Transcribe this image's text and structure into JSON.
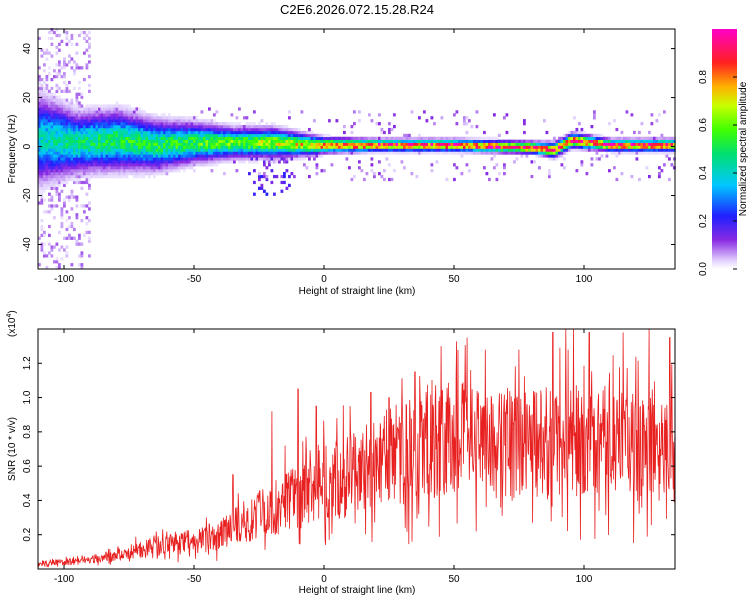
{
  "title": "C2E6.2026.072.15.28.R24",
  "colors": {
    "snr_line": "#e82020",
    "axis": "#000000",
    "background": "#ffffff"
  },
  "chart_data": [
    {
      "type": "heatmap",
      "xlabel": "Height of straight line (km)",
      "ylabel": "Frequency (Hz)",
      "xlim": [
        -110,
        135
      ],
      "ylim": [
        -50,
        48
      ],
      "x_ticks": [
        "-100",
        "-50",
        "0",
        "50",
        "100"
      ],
      "y_ticks": [
        "-40",
        "-20",
        "0",
        "20",
        "40"
      ],
      "colorbar": {
        "label": "Normalized spectral amplitude",
        "range": [
          0,
          1
        ],
        "ticks": [
          "0.0",
          "0.2",
          "0.4",
          "0.6",
          "0.8"
        ],
        "colormap": "rainbow (white-violet-blue-cyan-green-yellow-red-magenta)"
      },
      "ridge": [
        {
          "x": -105,
          "center": 2,
          "spread": 8,
          "amp": 0.45
        },
        {
          "x": -95,
          "center": 1,
          "spread": 6,
          "amp": 0.5
        },
        {
          "x": -80,
          "center": 2,
          "spread": 6,
          "amp": 0.55
        },
        {
          "x": -65,
          "center": 0,
          "spread": 5,
          "amp": 0.55
        },
        {
          "x": -50,
          "center": 1,
          "spread": 4,
          "amp": 0.6
        },
        {
          "x": -35,
          "center": 1,
          "spread": 3,
          "amp": 0.65
        },
        {
          "x": -20,
          "center": 1,
          "spread": 3,
          "amp": 0.7
        },
        {
          "x": -5,
          "center": 0,
          "spread": 2,
          "amp": 0.8
        },
        {
          "x": 0,
          "center": 0,
          "spread": 1.5,
          "amp": 0.95
        },
        {
          "x": 20,
          "center": 0,
          "spread": 1.2,
          "amp": 1.0
        },
        {
          "x": 50,
          "center": 0,
          "spread": 1.2,
          "amp": 1.0
        },
        {
          "x": 80,
          "center": -1,
          "spread": 1.2,
          "amp": 1.0
        },
        {
          "x": 88,
          "center": -2,
          "spread": 1.5,
          "amp": 0.95
        },
        {
          "x": 95,
          "center": 2,
          "spread": 1.5,
          "amp": 0.95
        },
        {
          "x": 110,
          "center": 0,
          "spread": 1.2,
          "amp": 1.0
        },
        {
          "x": 135,
          "center": 0,
          "spread": 1.2,
          "amp": 1.0
        }
      ]
    },
    {
      "type": "line",
      "xlabel": "Height of straight line (km)",
      "ylabel": "SNR (10 * v/v)",
      "y_exponent_label": "(x10",
      "y_exponent": "4",
      "xlim": [
        -110,
        135
      ],
      "ylim": [
        0,
        1.4
      ],
      "x_ticks": [
        "-100",
        "-50",
        "0",
        "50",
        "100"
      ],
      "y_ticks": [
        "0.2",
        "0.4",
        "0.6",
        "0.8",
        "1.0",
        "1.2"
      ],
      "series": [
        {
          "baseline": [
            [
              -110,
              0.03
            ],
            [
              -100,
              0.04
            ],
            [
              -90,
              0.05
            ],
            [
              -80,
              0.08
            ],
            [
              -70,
              0.12
            ],
            [
              -60,
              0.14
            ],
            [
              -50,
              0.16
            ],
            [
              -40,
              0.2
            ],
            [
              -30,
              0.28
            ],
            [
              -20,
              0.35
            ],
            [
              -10,
              0.42
            ],
            [
              0,
              0.5
            ],
            [
              10,
              0.55
            ],
            [
              20,
              0.62
            ],
            [
              30,
              0.68
            ],
            [
              40,
              0.74
            ],
            [
              50,
              0.78
            ],
            [
              60,
              0.74
            ],
            [
              70,
              0.72
            ],
            [
              80,
              0.72
            ],
            [
              90,
              0.74
            ],
            [
              100,
              0.76
            ],
            [
              110,
              0.74
            ],
            [
              120,
              0.72
            ],
            [
              135,
              0.7
            ]
          ],
          "peaks": [
            [
              -35,
              0.55
            ],
            [
              -20,
              0.92
            ],
            [
              -15,
              0.72
            ],
            [
              -10,
              1.05
            ],
            [
              -3,
              0.95
            ],
            [
              5,
              0.88
            ],
            [
              10,
              0.95
            ],
            [
              18,
              1.03
            ],
            [
              25,
              1.0
            ],
            [
              35,
              1.15
            ],
            [
              45,
              1.3
            ],
            [
              55,
              1.35
            ],
            [
              62,
              1.28
            ],
            [
              75,
              1.28
            ],
            [
              88,
              1.38
            ],
            [
              93,
              1.45
            ],
            [
              96,
              1.42
            ],
            [
              102,
              1.38
            ],
            [
              115,
              1.38
            ],
            [
              125,
              1.42
            ],
            [
              133,
              1.35
            ]
          ]
        }
      ]
    }
  ]
}
